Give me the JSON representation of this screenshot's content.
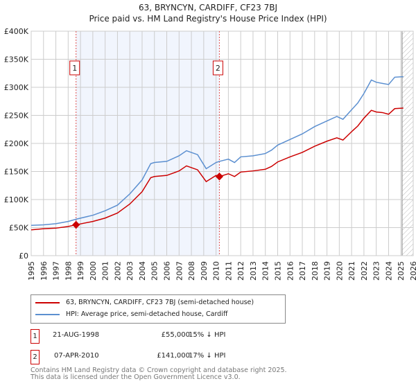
{
  "chart_data": {
    "type": "line",
    "title": "63, BRYNCYN, CARDIFF, CF23 7BJ",
    "subtitle": "Price paid vs. HM Land Registry's House Price Index (HPI)",
    "xlim": [
      1995,
      2026
    ],
    "ylim": [
      0,
      400000
    ],
    "x_ticks": [
      "1995",
      "1996",
      "1997",
      "1998",
      "1999",
      "2000",
      "2001",
      "2002",
      "2003",
      "2004",
      "2005",
      "2006",
      "2007",
      "2008",
      "2009",
      "2010",
      "2011",
      "2012",
      "2013",
      "2014",
      "2015",
      "2016",
      "2017",
      "2018",
      "2019",
      "2020",
      "2021",
      "2022",
      "2023",
      "2024",
      "2025",
      "2026"
    ],
    "y_ticks": [
      {
        "v": 0,
        "label": "£0"
      },
      {
        "v": 50000,
        "label": "£50K"
      },
      {
        "v": 100000,
        "label": "£100K"
      },
      {
        "v": 150000,
        "label": "£150K"
      },
      {
        "v": 200000,
        "label": "£200K"
      },
      {
        "v": 250000,
        "label": "£250K"
      },
      {
        "v": 300000,
        "label": "£300K"
      },
      {
        "v": 350000,
        "label": "£350K"
      },
      {
        "v": 400000,
        "label": "£400K"
      }
    ],
    "grid": true,
    "shaded_range": [
      1998.64,
      2010.27
    ],
    "forecast_hatch_from": 2025.1,
    "series": [
      {
        "name": "63, BRYNCYN, CARDIFF, CF23 7BJ (semi-detached house)",
        "color": "#cc0000",
        "x": [
          1995,
          1996,
          1997,
          1998,
          1998.64,
          2000,
          2001,
          2002,
          2003,
          2004,
          2004.7,
          2005,
          2006,
          2007,
          2007.6,
          2008.5,
          2009.2,
          2010,
          2010.27,
          2011,
          2011.5,
          2012,
          2013,
          2014,
          2014.5,
          2015,
          2016,
          2017,
          2018,
          2019,
          2019.8,
          2020.3,
          2021,
          2021.5,
          2022,
          2022.6,
          2023,
          2023.5,
          2024,
          2024.5,
          2025.2
        ],
        "y": [
          46000,
          48000,
          49000,
          52000,
          55000,
          61000,
          67000,
          76000,
          92000,
          114000,
          139000,
          141000,
          143000,
          151000,
          160000,
          153000,
          132000,
          143000,
          141000,
          146000,
          141000,
          149000,
          151000,
          154000,
          159000,
          167000,
          176000,
          184000,
          195000,
          204000,
          210000,
          206000,
          221000,
          231000,
          245000,
          259000,
          256000,
          255000,
          252000,
          262000,
          263000
        ]
      },
      {
        "name": "HPI: Average price, semi-detached house, Cardiff",
        "color": "#5b8fd0",
        "x": [
          1995,
          1996,
          1997,
          1998,
          1998.64,
          2000,
          2001,
          2002,
          2003,
          2004,
          2004.7,
          2005,
          2006,
          2007,
          2007.6,
          2008.5,
          2009.2,
          2010,
          2010.27,
          2011,
          2011.5,
          2012,
          2013,
          2014,
          2014.5,
          2015,
          2016,
          2017,
          2018,
          2019,
          2019.8,
          2020.3,
          2021,
          2021.5,
          2022,
          2022.6,
          2023,
          2023.5,
          2024,
          2024.5,
          2025.2
        ],
        "y": [
          54000,
          55000,
          57000,
          61000,
          65000,
          72000,
          80000,
          90000,
          110000,
          135000,
          164000,
          166000,
          168000,
          178000,
          187000,
          180000,
          155000,
          166000,
          168000,
          172000,
          166000,
          176000,
          178000,
          182000,
          188000,
          197000,
          207000,
          217000,
          230000,
          240000,
          248000,
          243000,
          260000,
          272000,
          289000,
          313000,
          309000,
          307000,
          305000,
          318000,
          319000
        ]
      }
    ],
    "markers": [
      {
        "label": "1",
        "x": 1998.64,
        "y": 55000
      },
      {
        "label": "2",
        "x": 2010.27,
        "y": 141000
      }
    ]
  },
  "legend": {
    "red": "63, BRYNCYN, CARDIFF, CF23 7BJ (semi-detached house)",
    "blue": "HPI: Average price, semi-detached house, Cardiff"
  },
  "transactions": [
    {
      "num": "1",
      "date": "21-AUG-1998",
      "price": "£55,000",
      "diff": "15% ↓ HPI"
    },
    {
      "num": "2",
      "date": "07-APR-2010",
      "price": "£141,000",
      "diff": "17% ↓ HPI"
    }
  ],
  "footer": {
    "line1": "Contains HM Land Registry data © Crown copyright and database right 2025.",
    "line2": "This data is licensed under the Open Government Licence v3.0."
  }
}
